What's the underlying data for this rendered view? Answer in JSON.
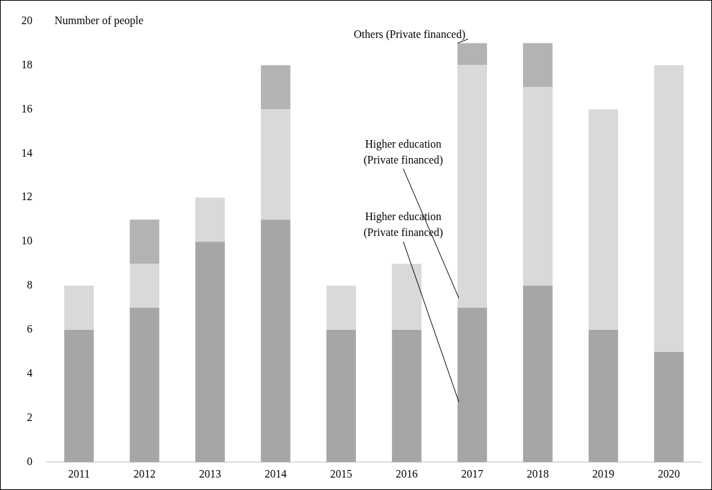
{
  "chart_data": {
    "type": "bar",
    "stacked": true,
    "ylabel": "Nummber of people",
    "categories": [
      "2011",
      "2012",
      "2013",
      "2014",
      "2015",
      "2016",
      "2017",
      "2018",
      "2019",
      "2020"
    ],
    "series": [
      {
        "name": "Higher education\n(Private financed)",
        "color": "#a6a6a6",
        "values": [
          6,
          7,
          10,
          11,
          6,
          6,
          7,
          8,
          6,
          5
        ]
      },
      {
        "name": "Higher education\n(Private financed)",
        "color": "#d9d9d9",
        "values": [
          2,
          2,
          2,
          5,
          2,
          3,
          11,
          9,
          10,
          13
        ]
      },
      {
        "name": "Others (Private financed)",
        "color": "#b3b3b3",
        "values": [
          0,
          2,
          0,
          2,
          0,
          0,
          1,
          2,
          0,
          0
        ]
      }
    ],
    "ylim": [
      0,
      20
    ],
    "yticks": [
      0,
      2,
      4,
      6,
      8,
      10,
      12,
      14,
      16,
      18,
      20
    ],
    "grid": false,
    "legend": false
  }
}
